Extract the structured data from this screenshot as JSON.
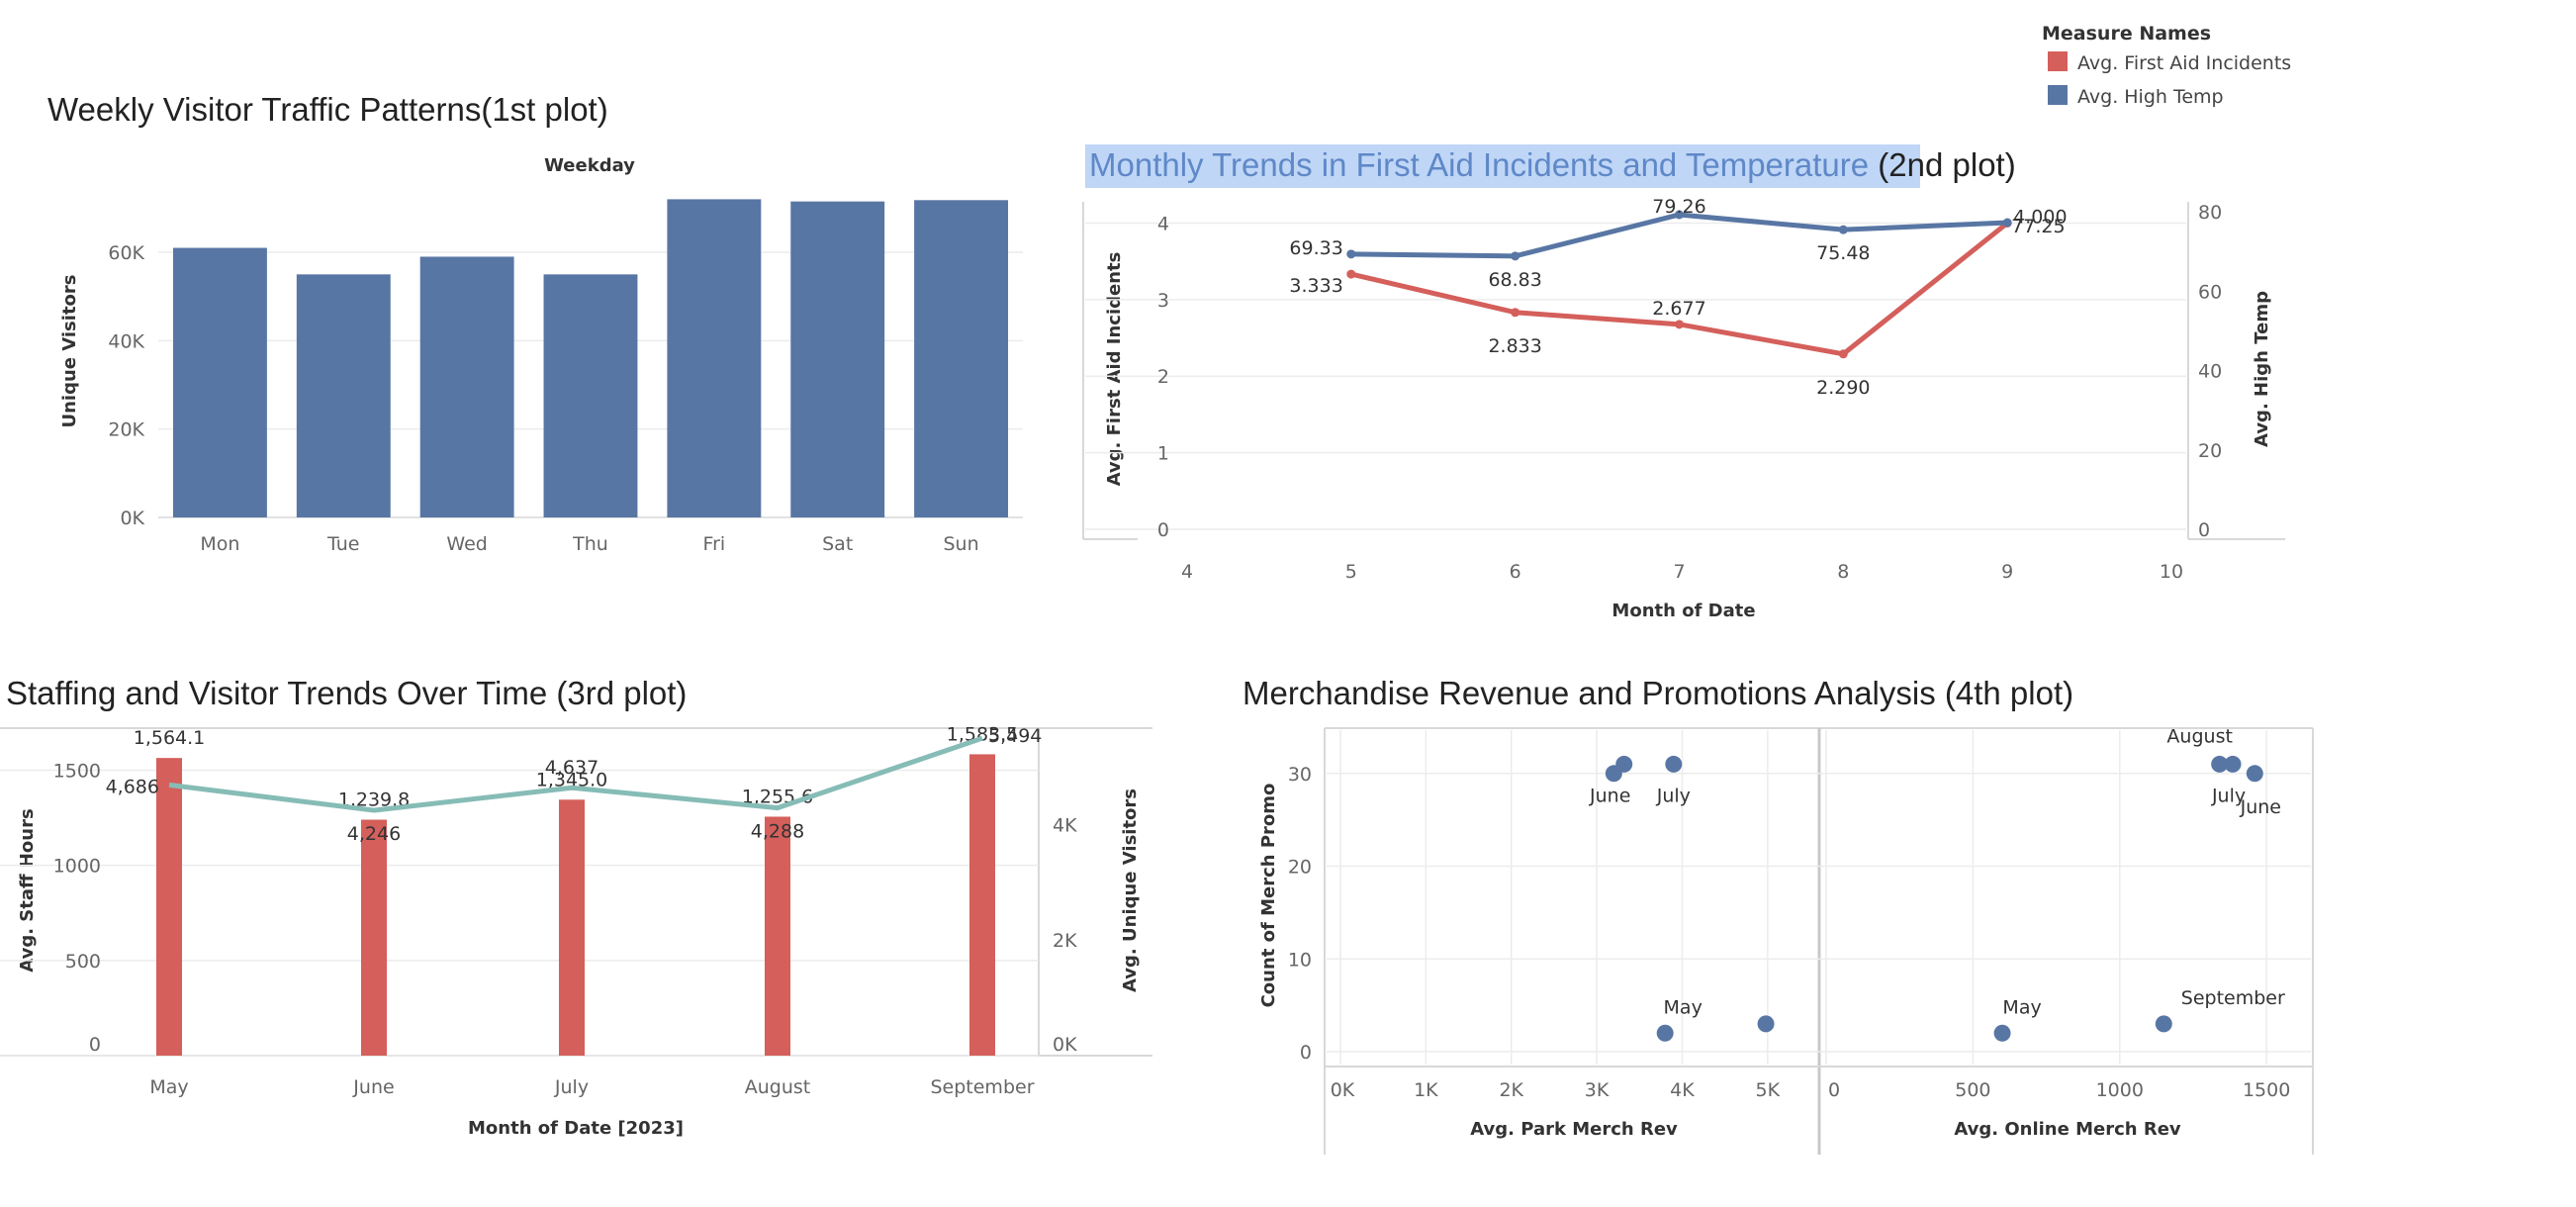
{
  "legend": {
    "title": "Measure Names",
    "items": [
      {
        "label": "Avg. First Aid Incidents",
        "color": "#d45f5b"
      },
      {
        "label": "Avg. High Temp",
        "color": "#5876a4"
      }
    ]
  },
  "chart_data": [
    {
      "type": "bar",
      "title": "Weekly Visitor Traffic Patterns(1st plot)",
      "column_header": "Weekday",
      "ylabel": "Unique Visitors",
      "categories": [
        "Mon",
        "Tue",
        "Wed",
        "Thu",
        "Fri",
        "Sat",
        "Sun"
      ],
      "values": [
        61000,
        55000,
        59000,
        55000,
        72000,
        71500,
        71800
      ],
      "ylim": [
        0,
        75000
      ],
      "yticks": [
        0,
        20000,
        40000,
        60000
      ],
      "ytick_labels": [
        "0K",
        "20K",
        "40K",
        "60K"
      ],
      "color": "#5876a4",
      "grid": true
    },
    {
      "type": "line",
      "title_highlight": "Monthly Trends in First Aid Incidents and Temperature",
      "title_rest": " (2nd plot)",
      "xlabel": "Month of Date",
      "ylabel_left": "Avg. First Aid Incidents",
      "ylabel_right": "Avg. High Temp",
      "xlim": [
        4,
        10
      ],
      "xticks": [
        "4",
        "5",
        "6",
        "7",
        "8",
        "9",
        "10"
      ],
      "ylim_left": [
        0,
        4.2
      ],
      "yticks_left": [
        "0",
        "1",
        "2",
        "3",
        "4"
      ],
      "ylim_right": [
        0,
        81
      ],
      "yticks_right": [
        "0",
        "20",
        "40",
        "60",
        "80"
      ],
      "series": [
        {
          "name": "Avg. First Aid Incidents",
          "axis": "left",
          "color": "#d45f5b",
          "x": [
            5,
            6,
            7,
            8,
            9
          ],
          "values": [
            3.333,
            2.833,
            2.677,
            2.29,
            4.0
          ],
          "labels": [
            "3.333",
            "2.833",
            "2.677",
            "2.290",
            "4.000"
          ]
        },
        {
          "name": "Avg. High Temp",
          "axis": "right",
          "color": "#5876a4",
          "x": [
            5,
            6,
            7,
            8,
            9
          ],
          "values": [
            69.33,
            68.83,
            79.26,
            75.48,
            77.25
          ],
          "labels": [
            "69.33",
            "68.83",
            "79.26",
            "75.48",
            "77.25"
          ]
        }
      ],
      "grid": true
    },
    {
      "type": "bar",
      "title": "Staffing and Visitor Trends Over Time (3rd plot)",
      "xlabel": "Month of Date [2023]",
      "ylabel_left": "Avg. Staff Hours",
      "ylabel_right": "Avg. Unique Visitors",
      "categories": [
        "May",
        "June",
        "July",
        "August",
        "September"
      ],
      "ylim_left": [
        0,
        1700
      ],
      "yticks_left": [
        "0",
        "500",
        "1000",
        "1500"
      ],
      "ylim_right": [
        0,
        5600
      ],
      "yticks_right": [
        "0K",
        "2K",
        "4K"
      ],
      "yticks_right_values": [
        0,
        2000,
        4000
      ],
      "bars": {
        "name": "Avg. Staff Hours",
        "color": "#d45f5b",
        "values": [
          1564.1,
          1239.8,
          1345.0,
          1255.6,
          1583.5
        ],
        "labels": [
          "1,564.1",
          "1,239.8",
          "1,345.0",
          "1,255.6",
          "1,583.5"
        ]
      },
      "line": {
        "name": "Avg. Unique Visitors",
        "color": "#86bcb6",
        "values": [
          4686,
          4246,
          4637,
          4288,
          5494
        ],
        "labels": [
          "4,686",
          "4,246",
          "4,637",
          "4,288",
          "5,494"
        ]
      },
      "grid": true
    },
    {
      "type": "scatter",
      "title": "Merchandise Revenue and Promotions Analysis (4th plot)",
      "ylabel": "Count of Merch Promo",
      "ylim": [
        -1.5,
        32
      ],
      "yticks": [
        "0",
        "10",
        "20",
        "30"
      ],
      "panels": [
        {
          "xlabel": "Avg. Park Merch Rev",
          "xlim": [
            0,
            5500
          ],
          "xticks": [
            "0K",
            "1K",
            "2K",
            "3K",
            "4K",
            "5K"
          ],
          "points": [
            {
              "x": 3200,
              "y": 30,
              "label": ""
            },
            {
              "x": 3320,
              "y": 31,
              "label": "June"
            },
            {
              "x": 3900,
              "y": 31,
              "label": "July"
            },
            {
              "x": 3800,
              "y": 2,
              "label": "May"
            },
            {
              "x": 4980,
              "y": 3,
              "label": ""
            }
          ]
        },
        {
          "xlabel": "Avg. Online Merch Rev",
          "xlim": [
            0,
            1550
          ],
          "xticks": [
            "0",
            "500",
            "1000",
            "1500"
          ],
          "points": [
            {
              "x": 1340,
              "y": 31,
              "label": "August"
            },
            {
              "x": 1385,
              "y": 31,
              "label": "July"
            },
            {
              "x": 1460,
              "y": 30,
              "label": "June"
            },
            {
              "x": 600,
              "y": 2,
              "label": "May"
            },
            {
              "x": 1150,
              "y": 3,
              "label": "September"
            }
          ]
        }
      ],
      "color": "#5876a4",
      "grid": true
    }
  ]
}
